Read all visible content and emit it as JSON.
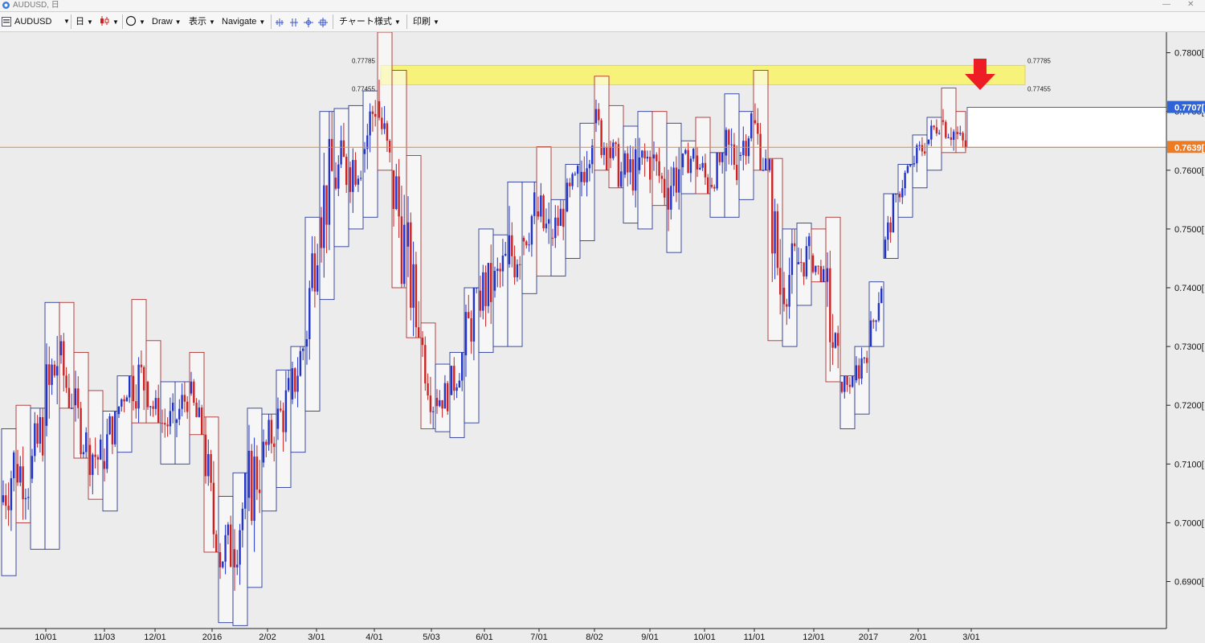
{
  "window": {
    "title": "AUDUSD, 日",
    "minimize_glyph": "—",
    "close_glyph": "✕"
  },
  "toolbar": {
    "symbol": "AUDUSD",
    "period": "日",
    "draw": "Draw",
    "display": "表示",
    "navigate": "Navigate",
    "chart_style": "チャート様式",
    "print": "印刷",
    "icons": [
      "chart-list-icon",
      "candle-type-icon",
      "circle-tool-icon",
      "zoom-in-icon",
      "zoom-out-icon",
      "crosshair-icon",
      "fit-icon"
    ]
  },
  "zone": {
    "upper_label": "0.77785",
    "lower_label": "0.77455",
    "upper": 0.77785,
    "lower": 0.77455,
    "color": "#f6f27a"
  },
  "price_tags": {
    "blue": "0.7707",
    "blue_value": 0.7707,
    "orange": "0.7639",
    "orange_value": 0.7639
  },
  "colors": {
    "up": "#2233cc",
    "down": "#cc2222",
    "box_up": "#2a3a9a",
    "box_down": "#b03030",
    "arrow": "#ee1c24",
    "hline": "#e08a3c"
  },
  "chart_data": {
    "type": "candlestick",
    "symbol": "AUDUSD",
    "timeframe": "日",
    "y_range": [
      0.682,
      0.7835
    ],
    "y_ticks": [
      "0.7800",
      "0.7700",
      "0.7600",
      "0.7500",
      "0.7400",
      "0.7300",
      "0.7200",
      "0.7100",
      "0.7000",
      "0.6900"
    ],
    "y_tick_values": [
      0.78,
      0.77,
      0.76,
      0.75,
      0.74,
      0.73,
      0.72,
      0.71,
      0.7,
      0.69
    ],
    "x_ticks": [
      "10/01",
      "11/03",
      "12/01",
      "2016",
      "2/02",
      "3/01",
      "4/01",
      "5/03",
      "6/01",
      "7/01",
      "8/02",
      "9/01",
      "10/01",
      "11/01",
      "12/01",
      "2017",
      "2/01",
      "3/01"
    ],
    "weekly_ranges": [
      [
        0.716,
        0.691
      ],
      [
        0.72,
        0.7
      ],
      [
        0.7195,
        0.6955
      ],
      [
        0.7375,
        0.6955
      ],
      [
        0.7375,
        0.7195
      ],
      [
        0.729,
        0.711
      ],
      [
        0.7225,
        0.704
      ],
      [
        0.719,
        0.702
      ],
      [
        0.725,
        0.712
      ],
      [
        0.738,
        0.717
      ],
      [
        0.731,
        0.717
      ],
      [
        0.724,
        0.71
      ],
      [
        0.724,
        0.71
      ],
      [
        0.729,
        0.715
      ],
      [
        0.718,
        0.695
      ],
      [
        0.7045,
        0.683
      ],
      [
        0.7085,
        0.6825
      ],
      [
        0.7195,
        0.689
      ],
      [
        0.7185,
        0.702
      ],
      [
        0.726,
        0.706
      ],
      [
        0.73,
        0.712
      ],
      [
        0.752,
        0.719
      ],
      [
        0.77,
        0.738
      ],
      [
        0.7705,
        0.747
      ],
      [
        0.771,
        0.75
      ],
      [
        0.7735,
        0.752
      ],
      [
        0.7835,
        0.76
      ],
      [
        0.777,
        0.74
      ],
      [
        0.7625,
        0.7315
      ],
      [
        0.734,
        0.716
      ],
      [
        0.727,
        0.7155
      ],
      [
        0.729,
        0.7145
      ],
      [
        0.74,
        0.717
      ],
      [
        0.75,
        0.729
      ],
      [
        0.749,
        0.73
      ],
      [
        0.758,
        0.73
      ],
      [
        0.758,
        0.739
      ],
      [
        0.764,
        0.742
      ],
      [
        0.755,
        0.742
      ],
      [
        0.761,
        0.745
      ],
      [
        0.768,
        0.748
      ],
      [
        0.776,
        0.76
      ],
      [
        0.771,
        0.757
      ],
      [
        0.7675,
        0.751
      ],
      [
        0.77,
        0.75
      ],
      [
        0.77,
        0.754
      ],
      [
        0.768,
        0.746
      ],
      [
        0.765,
        0.756
      ],
      [
        0.769,
        0.756
      ],
      [
        0.763,
        0.752
      ],
      [
        0.773,
        0.752
      ],
      [
        0.77,
        0.755
      ],
      [
        0.777,
        0.76
      ],
      [
        0.762,
        0.731
      ],
      [
        0.75,
        0.73
      ],
      [
        0.751,
        0.737
      ],
      [
        0.75,
        0.741
      ],
      [
        0.752,
        0.724
      ],
      [
        0.725,
        0.716
      ],
      [
        0.73,
        0.7185
      ],
      [
        0.741,
        0.73
      ],
      [
        0.756,
        0.745
      ],
      [
        0.761,
        0.752
      ],
      [
        0.766,
        0.757
      ],
      [
        0.769,
        0.76
      ],
      [
        0.774,
        0.763
      ],
      [
        0.77,
        0.763
      ]
    ]
  }
}
